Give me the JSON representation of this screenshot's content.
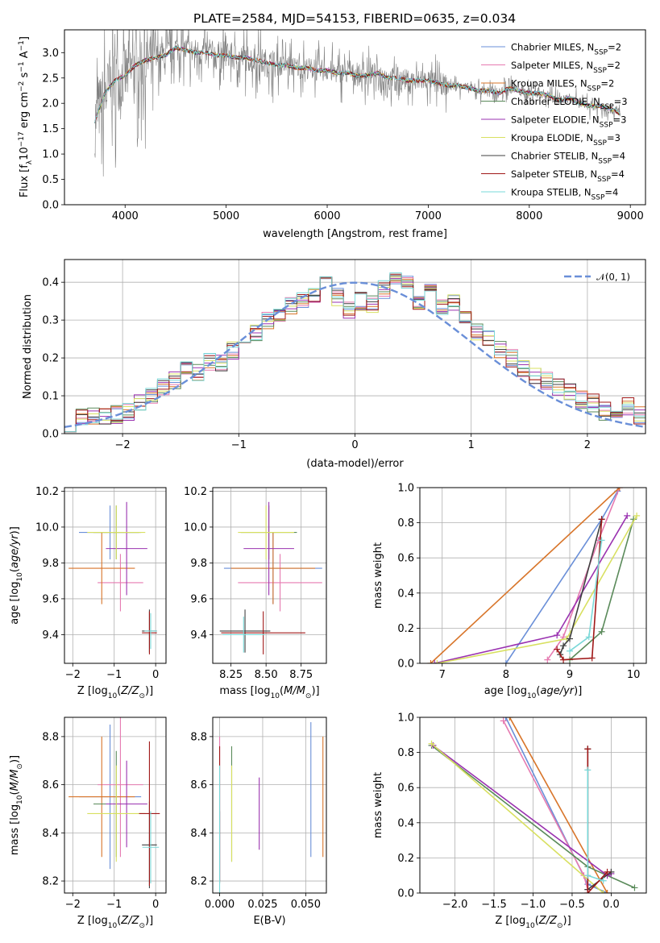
{
  "title": "PLATE=2584, MJD=54153, FIBERID=0635, z=0.034",
  "legend_models": [
    {
      "name": "Chabrier MILES, N$_{SSP}$=2",
      "label": "Chabrier MILES, N",
      "sub": "SSP",
      "count": "=2",
      "color": "#6a8fd8"
    },
    {
      "name": "Salpeter MILES, N$_{SSP}$=2",
      "label": "Salpeter MILES, N",
      "sub": "SSP",
      "count": "=2",
      "color": "#e67ab0"
    },
    {
      "name": "Kroupa MILES, N$_{SSP}$=2",
      "label": "Kroupa MILES, N",
      "sub": "SSP",
      "count": "=2",
      "color": "#d8752a"
    },
    {
      "name": "Chabrier ELODIE, N$_{SSP}$=3",
      "label": "Chabrier ELODIE, N",
      "sub": "SSP",
      "count": "=3",
      "color": "#5a8a5a"
    },
    {
      "name": "Salpeter ELODIE, N$_{SSP}$=3",
      "label": "Salpeter ELODIE, N",
      "sub": "SSP",
      "count": "=3",
      "color": "#9a32b0"
    },
    {
      "name": "Kroupa ELODIE, N$_{SSP}$=3",
      "label": "Kroupa ELODIE, N",
      "sub": "SSP",
      "count": "=3",
      "color": "#d8e060"
    },
    {
      "name": "Chabrier STELIB, N$_{SSP}$=4",
      "label": "Chabrier STELIB, N",
      "sub": "SSP",
      "count": "=4",
      "color": "#404040"
    },
    {
      "name": "Salpeter STELIB, N$_{SSP}$=4",
      "label": "Salpeter STELIB, N",
      "sub": "SSP",
      "count": "=4",
      "color": "#a01818"
    },
    {
      "name": "Kroupa STELIB, N$_{SSP}$=4",
      "label": "Kroupa STELIB, N",
      "sub": "SSP",
      "count": "=4",
      "color": "#7ad8d8"
    }
  ],
  "chart_data": [
    {
      "id": "spectrum",
      "type": "line",
      "xlabel": "wavelength [Angstrom, rest frame]",
      "ylabel": "Flux [f$_\\lambda$10$^{-17}$ erg cm$^{-2}$ s$^{-1}$ A$^{-1}$]",
      "ylabel_parts": [
        "Flux [f",
        "λ",
        "10",
        "−17",
        " erg cm",
        "−2",
        " s",
        "−1",
        " A",
        "−1",
        "]"
      ],
      "xlim": [
        3400,
        9150
      ],
      "ylim": [
        0,
        3.45
      ],
      "xticks": [
        4000,
        5000,
        6000,
        7000,
        8000,
        9000
      ],
      "yticks": [
        0.0,
        0.5,
        1.0,
        1.5,
        2.0,
        2.5,
        3.0
      ],
      "data_color": "#808080",
      "x": [
        3700,
        3800,
        3900,
        4000,
        4100,
        4200,
        4300,
        4400,
        4500,
        4600,
        4700,
        4800,
        4900,
        5000,
        5100,
        5200,
        5300,
        5400,
        5500,
        5600,
        5700,
        5800,
        5900,
        6000,
        6100,
        6200,
        6300,
        6400,
        6500,
        6600,
        6700,
        6800,
        6900,
        7000,
        7100,
        7200,
        7300,
        7400,
        7500,
        7600,
        7700,
        7800,
        7900,
        8000,
        8100,
        8200,
        8300,
        8400,
        8500,
        8600,
        8700,
        8800,
        8900
      ],
      "y": [
        1.65,
        2.2,
        2.45,
        2.55,
        2.75,
        2.85,
        2.9,
        2.95,
        3.1,
        3.05,
        3.0,
        3.0,
        2.95,
        2.95,
        2.9,
        2.9,
        2.85,
        2.8,
        2.75,
        2.75,
        2.7,
        2.7,
        2.65,
        2.65,
        2.6,
        2.6,
        2.55,
        2.55,
        2.6,
        2.5,
        2.5,
        2.45,
        2.45,
        2.45,
        2.4,
        2.35,
        2.35,
        2.3,
        2.25,
        2.25,
        2.2,
        2.3,
        2.25,
        2.2,
        2.2,
        2.15,
        2.05,
        2.1,
        2.0,
        1.95,
        1.95,
        1.9,
        1.8
      ]
    },
    {
      "id": "residuals",
      "type": "bar",
      "xlabel": "(data-model)/error",
      "ylabel": "Normed distribution",
      "xlim": [
        -2.5,
        2.5
      ],
      "ylim": [
        0,
        0.46
      ],
      "xticks": [
        -2,
        -1,
        0,
        1,
        2
      ],
      "yticks": [
        0.0,
        0.1,
        0.2,
        0.3,
        0.4
      ],
      "legend": "$\\mathcal{N}(0,1)$",
      "legend_label": "𝒩(0, 1)",
      "gauss_color": "#6a8fd8",
      "bins": [
        -2.5,
        -2.4,
        -2.3,
        -2.2,
        -2.1,
        -2.0,
        -1.9,
        -1.8,
        -1.7,
        -1.6,
        -1.5,
        -1.4,
        -1.3,
        -1.2,
        -1.1,
        -1.0,
        -0.9,
        -0.8,
        -0.7,
        -0.6,
        -0.5,
        -0.4,
        -0.3,
        -0.2,
        -0.1,
        0.0,
        0.1,
        0.2,
        0.3,
        0.4,
        0.5,
        0.6,
        0.7,
        0.8,
        0.9,
        1.0,
        1.1,
        1.2,
        1.3,
        1.4,
        1.5,
        1.6,
        1.7,
        1.8,
        1.9,
        2.0,
        2.1,
        2.2,
        2.3,
        2.4,
        2.5
      ],
      "counts": [
        0.03,
        0.04,
        0.05,
        0.045,
        0.05,
        0.06,
        0.08,
        0.1,
        0.12,
        0.14,
        0.17,
        0.16,
        0.19,
        0.19,
        0.22,
        0.24,
        0.27,
        0.3,
        0.31,
        0.34,
        0.35,
        0.37,
        0.41,
        0.36,
        0.33,
        0.35,
        0.34,
        0.38,
        0.42,
        0.4,
        0.34,
        0.37,
        0.33,
        0.35,
        0.3,
        0.27,
        0.25,
        0.22,
        0.2,
        0.17,
        0.15,
        0.14,
        0.12,
        0.11,
        0.09,
        0.08,
        0.06,
        0.05,
        0.07,
        0.05
      ]
    },
    {
      "id": "age_vs_Z",
      "type": "scatter",
      "xlabel": "Z [log$_{10}$(Z/Z$_\\odot$)]",
      "xlabel_parts": [
        "Z [log",
        "10",
        "(",
        "Z",
        "/",
        "Z",
        "⊙",
        ")]"
      ],
      "ylabel": "age  [log$_{10}$(age/yr)]",
      "ylabel_parts": [
        "age  [log",
        "10",
        "(",
        "age",
        "/",
        "yr",
        ")]"
      ],
      "xlim": [
        -2.2,
        0.25
      ],
      "ylim": [
        9.24,
        10.22
      ],
      "xticks": [
        -2,
        -1,
        0
      ],
      "yticks": [
        9.4,
        9.6,
        9.8,
        10.0,
        10.2
      ],
      "points": [
        {
          "m": 0,
          "x": -1.1,
          "y": 9.97,
          "dx": 0.75,
          "dy": 0.15
        },
        {
          "m": 1,
          "x": -0.85,
          "y": 9.69,
          "dx": 0.55,
          "dy": 0.16
        },
        {
          "m": 2,
          "x": -1.3,
          "y": 9.77,
          "dx": 0.8,
          "dy": 0.2
        },
        {
          "m": 3,
          "x": -0.95,
          "y": 9.97,
          "dx": 0.55,
          "dy": 0.15
        },
        {
          "m": 4,
          "x": -0.7,
          "y": 9.88,
          "dx": 0.5,
          "dy": 0.26
        },
        {
          "m": 5,
          "x": -0.95,
          "y": 9.97,
          "dx": 0.7,
          "dy": 0.15
        },
        {
          "m": 6,
          "x": -0.15,
          "y": 9.42,
          "dx": 0.18,
          "dy": 0.12
        },
        {
          "m": 7,
          "x": -0.15,
          "y": 9.41,
          "dx": 0.18,
          "dy": 0.12
        },
        {
          "m": 8,
          "x": -0.12,
          "y": 9.42,
          "dx": 0.15,
          "dy": 0.1
        }
      ]
    },
    {
      "id": "age_vs_mass",
      "type": "scatter",
      "xlabel": "mass [log$_{10}$(M/M$_\\odot$)]",
      "xlabel_parts": [
        "mass [log",
        "10",
        "(",
        "M",
        "/",
        "M",
        "⊙",
        ")]"
      ],
      "xlim": [
        8.12,
        8.93
      ],
      "ylim": [
        9.24,
        10.22
      ],
      "xticks": [
        8.25,
        8.5,
        8.75
      ],
      "yticks": [
        9.4,
        9.6,
        9.8,
        10.0,
        10.2
      ],
      "points": [
        {
          "m": 0,
          "x": 8.55,
          "y": 9.77,
          "dx": 0.35,
          "dy": 0.2
        },
        {
          "m": 1,
          "x": 8.6,
          "y": 9.69,
          "dx": 0.3,
          "dy": 0.16
        },
        {
          "m": 2,
          "x": 8.55,
          "y": 9.77,
          "dx": 0.3,
          "dy": 0.2
        },
        {
          "m": 3,
          "x": 8.52,
          "y": 9.97,
          "dx": 0.2,
          "dy": 0.15
        },
        {
          "m": 4,
          "x": 8.52,
          "y": 9.88,
          "dx": 0.18,
          "dy": 0.26
        },
        {
          "m": 5,
          "x": 8.5,
          "y": 9.97,
          "dx": 0.2,
          "dy": 0.15
        },
        {
          "m": 6,
          "x": 8.35,
          "y": 9.42,
          "dx": 0.18,
          "dy": 0.12
        },
        {
          "m": 7,
          "x": 8.48,
          "y": 9.41,
          "dx": 0.3,
          "dy": 0.12
        },
        {
          "m": 8,
          "x": 8.34,
          "y": 9.4,
          "dx": 0.15,
          "dy": 0.1
        }
      ]
    },
    {
      "id": "weight_vs_age",
      "type": "line",
      "xlabel": "age  [log$_{10}$(age/yr)]",
      "xlabel_parts": [
        "age  [log",
        "10",
        "(",
        "age",
        "/",
        "yr",
        ")]"
      ],
      "ylabel": "mass weight",
      "xlim": [
        6.65,
        10.2
      ],
      "ylim": [
        0,
        1.0
      ],
      "xticks": [
        7,
        8,
        9,
        10
      ],
      "yticks": [
        0.0,
        0.2,
        0.4,
        0.6,
        0.8,
        1.0
      ],
      "series": [
        {
          "m": 0,
          "x": [
            8.0,
            9.5,
            9.75
          ],
          "y": [
            0.0,
            0.82,
            0.98
          ]
        },
        {
          "m": 1,
          "x": [
            8.65,
            8.9,
            9.45,
            9.78
          ],
          "y": [
            0.02,
            0.15,
            0.7,
            1.0
          ]
        },
        {
          "m": 2,
          "x": [
            6.82,
            9.78
          ],
          "y": [
            0.0,
            1.0
          ]
        },
        {
          "m": 3,
          "x": [
            9.0,
            9.5,
            10.0
          ],
          "y": [
            0.02,
            0.18,
            0.82
          ]
        },
        {
          "m": 4,
          "x": [
            6.88,
            8.8,
            9.9
          ],
          "y": [
            0.0,
            0.16,
            0.84
          ]
        },
        {
          "m": 5,
          "x": [
            6.92,
            8.95,
            10.05
          ],
          "y": [
            0.0,
            0.14,
            0.84
          ]
        },
        {
          "m": 6,
          "x": [
            8.85,
            8.9,
            9.0,
            9.5
          ],
          "y": [
            0.05,
            0.1,
            0.14,
            0.82
          ]
        },
        {
          "m": 7,
          "x": [
            8.8,
            8.9,
            9.35,
            9.5
          ],
          "y": [
            0.08,
            0.02,
            0.03,
            0.82
          ]
        },
        {
          "m": 8,
          "x": [
            9.0,
            9.3,
            9.5
          ],
          "y": [
            0.07,
            0.15,
            0.7
          ]
        }
      ]
    },
    {
      "id": "mass_vs_Z",
      "type": "scatter",
      "xlabel": "Z [log$_{10}$(Z/Z$_\\odot$)]",
      "xlabel_parts": [
        "Z [log",
        "10",
        "(",
        "Z",
        "/",
        "Z",
        "⊙",
        ")]"
      ],
      "ylabel": "mass [log$_{10}$(M/M$_\\odot$)]",
      "ylabel_parts": [
        "mass [log",
        "10",
        "(",
        "M",
        "/",
        "M",
        "⊙",
        ")]"
      ],
      "xlim": [
        -2.2,
        0.25
      ],
      "ylim": [
        8.15,
        8.88
      ],
      "xticks": [
        -2,
        -1,
        0
      ],
      "yticks": [
        8.2,
        8.4,
        8.6,
        8.8
      ],
      "points": [
        {
          "m": 0,
          "x": -1.1,
          "y": 8.55,
          "dx": 0.75,
          "dy": 0.3
        },
        {
          "m": 1,
          "x": -0.85,
          "y": 8.6,
          "dx": 0.55,
          "dy": 0.3
        },
        {
          "m": 2,
          "x": -1.3,
          "y": 8.55,
          "dx": 0.8,
          "dy": 0.25
        },
        {
          "m": 3,
          "x": -0.95,
          "y": 8.52,
          "dx": 0.55,
          "dy": 0.22
        },
        {
          "m": 4,
          "x": -0.7,
          "y": 8.52,
          "dx": 0.5,
          "dy": 0.18
        },
        {
          "m": 5,
          "x": -0.95,
          "y": 8.48,
          "dx": 0.7,
          "dy": 0.2
        },
        {
          "m": 6,
          "x": -0.15,
          "y": 8.35,
          "dx": 0.18,
          "dy": 0.18
        },
        {
          "m": 7,
          "x": -0.15,
          "y": 8.48,
          "dx": 0.25,
          "dy": 0.3
        },
        {
          "m": 8,
          "x": -0.12,
          "y": 8.34,
          "dx": 0.2,
          "dy": 0.15
        }
      ]
    },
    {
      "id": "mass_vs_ebv",
      "type": "scatter",
      "xlabel": "E(B-V)",
      "xlim": [
        -0.004,
        0.062
      ],
      "ylim": [
        8.15,
        8.88
      ],
      "xticks": [
        0.0,
        0.025,
        0.05
      ],
      "yticks": [
        8.2,
        8.4,
        8.6,
        8.8
      ],
      "points": [
        {
          "m": 0,
          "x": 0.053,
          "y": 8.58,
          "dx": 0,
          "dy": 0.28
        },
        {
          "m": 1,
          "x": 0.0,
          "y": 8.5,
          "dx": 0,
          "dy": 0.3
        },
        {
          "m": 2,
          "x": 0.06,
          "y": 8.55,
          "dx": 0,
          "dy": 0.25
        },
        {
          "m": 3,
          "x": 0.007,
          "y": 8.52,
          "dx": 0,
          "dy": 0.24
        },
        {
          "m": 4,
          "x": 0.023,
          "y": 8.48,
          "dx": 0,
          "dy": 0.15
        },
        {
          "m": 5,
          "x": 0.007,
          "y": 8.48,
          "dx": 0,
          "dy": 0.2
        },
        {
          "m": 6,
          "x": 0.0,
          "y": 8.34,
          "dx": 0,
          "dy": 0.15
        },
        {
          "m": 7,
          "x": 0.0,
          "y": 8.48,
          "dx": 0,
          "dy": 0.28
        },
        {
          "m": 8,
          "x": 0.0,
          "y": 8.4,
          "dx": 0,
          "dy": 0.28
        }
      ]
    },
    {
      "id": "weight_vs_Z",
      "type": "line",
      "xlabel": "Z [log$_{10}$(Z/Z$_\\odot$)]",
      "xlabel_parts": [
        "Z [log",
        "10",
        "(",
        "Z",
        "/",
        "Z",
        "⊙",
        ")]"
      ],
      "ylabel": "mass weight",
      "xlim": [
        -2.45,
        0.45
      ],
      "ylim": [
        0,
        1.0
      ],
      "xticks": [
        -2.0,
        -1.5,
        -1.0,
        -0.5,
        0.0
      ],
      "yticks": [
        0.0,
        0.2,
        0.4,
        0.6,
        0.8,
        1.0
      ],
      "series": [
        {
          "m": 0,
          "x": [
            -1.35,
            -0.3,
            -0.05
          ],
          "y": [
            1.0,
            0.05,
            0.0
          ]
        },
        {
          "m": 1,
          "x": [
            -1.38,
            -0.35,
            -0.3
          ],
          "y": [
            0.98,
            0.1,
            0.02
          ]
        },
        {
          "m": 2,
          "x": [
            -1.3,
            -0.05
          ],
          "y": [
            1.0,
            0.0
          ]
        },
        {
          "m": 3,
          "x": [
            -2.3,
            -0.3,
            0.3
          ],
          "y": [
            0.84,
            0.15,
            0.03
          ]
        },
        {
          "m": 4,
          "x": [
            -2.28,
            -0.05,
            -0.0
          ],
          "y": [
            0.84,
            0.1,
            0.11
          ]
        },
        {
          "m": 5,
          "x": [
            -2.3,
            -0.1
          ],
          "y": [
            0.85,
            0.0
          ]
        },
        {
          "m": 6,
          "x": [
            -0.3,
            -0.3,
            0.0
          ],
          "y": [
            0.82,
            0.02,
            0.12
          ]
        },
        {
          "m": 7,
          "x": [
            -0.3,
            -0.3,
            -0.05
          ],
          "y": [
            0.82,
            0.0,
            0.12
          ]
        },
        {
          "m": 8,
          "x": [
            -0.3,
            -0.3,
            -0.1
          ],
          "y": [
            0.7,
            0.1,
            0.07
          ]
        }
      ]
    }
  ]
}
